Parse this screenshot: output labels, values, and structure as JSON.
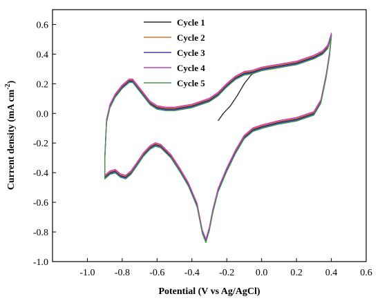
{
  "chart_data": {
    "type": "line",
    "title": "",
    "xlabel": "Potential (V vs Ag/AgCl)",
    "ylabel_main": "Current density (mA cm",
    "ylabel_sup": "-2",
    "ylabel_close": ")",
    "xlim": [
      -1.2,
      0.6
    ],
    "ylim": [
      -1.0,
      0.7
    ],
    "xticks": [
      -1.0,
      -0.8,
      -0.6,
      -0.4,
      -0.2,
      0.0,
      0.2,
      0.4,
      0.6
    ],
    "xtick_labels": [
      "-1.0",
      "-0.8",
      "-0.6",
      "-0.4",
      "-0.2",
      "0.0",
      "0.2",
      "0.4",
      "0.6"
    ],
    "yticks": [
      -1.0,
      -0.8,
      -0.6,
      -0.4,
      -0.2,
      0.0,
      0.2,
      0.4,
      0.6
    ],
    "ytick_labels": [
      "-1.0",
      "-0.8",
      "-0.6",
      "-0.4",
      "-0.2",
      "0.0",
      "0.2",
      "0.4",
      "0.6"
    ],
    "grid": false,
    "legend_position": "top-center",
    "series": [
      {
        "name": "Cycle 1",
        "color": "#2b2b2b",
        "offset": 0.0
      },
      {
        "name": "Cycle 2",
        "color": "#e06a32",
        "offset": 0.006
      },
      {
        "name": "Cycle 3",
        "color": "#3b3bd6",
        "offset": -0.006
      },
      {
        "name": "Cycle 4",
        "color": "#c23bc2",
        "offset": 0.012
      },
      {
        "name": "Cycle 5",
        "color": "#3f9a3f",
        "offset": -0.012
      }
    ],
    "first_cycle_start": [
      [
        -0.25,
        -0.05
      ],
      [
        -0.22,
        0.0
      ],
      [
        -0.18,
        0.05
      ],
      [
        -0.14,
        0.12
      ],
      [
        -0.1,
        0.2
      ],
      [
        -0.06,
        0.26
      ],
      [
        -0.02,
        0.29
      ]
    ],
    "cv_loop": [
      [
        -0.05,
        0.28
      ],
      [
        0.0,
        0.3
      ],
      [
        0.05,
        0.31
      ],
      [
        0.1,
        0.32
      ],
      [
        0.15,
        0.33
      ],
      [
        0.2,
        0.34
      ],
      [
        0.25,
        0.36
      ],
      [
        0.3,
        0.38
      ],
      [
        0.35,
        0.41
      ],
      [
        0.38,
        0.45
      ],
      [
        0.4,
        0.53
      ],
      [
        0.39,
        0.4
      ],
      [
        0.37,
        0.25
      ],
      [
        0.34,
        0.08
      ],
      [
        0.3,
        0.0
      ],
      [
        0.2,
        -0.04
      ],
      [
        0.1,
        -0.06
      ],
      [
        0.0,
        -0.09
      ],
      [
        -0.05,
        -0.11
      ],
      [
        -0.1,
        -0.16
      ],
      [
        -0.15,
        -0.26
      ],
      [
        -0.2,
        -0.38
      ],
      [
        -0.25,
        -0.52
      ],
      [
        -0.28,
        -0.66
      ],
      [
        -0.3,
        -0.78
      ],
      [
        -0.32,
        -0.86
      ],
      [
        -0.34,
        -0.8
      ],
      [
        -0.37,
        -0.62
      ],
      [
        -0.42,
        -0.48
      ],
      [
        -0.47,
        -0.38
      ],
      [
        -0.52,
        -0.29
      ],
      [
        -0.58,
        -0.22
      ],
      [
        -0.61,
        -0.21
      ],
      [
        -0.64,
        -0.23
      ],
      [
        -0.68,
        -0.28
      ],
      [
        -0.72,
        -0.35
      ],
      [
        -0.75,
        -0.4
      ],
      [
        -0.78,
        -0.43
      ],
      [
        -0.81,
        -0.42
      ],
      [
        -0.84,
        -0.39
      ],
      [
        -0.87,
        -0.4
      ],
      [
        -0.9,
        -0.43
      ],
      [
        -0.9,
        -0.3
      ],
      [
        -0.89,
        -0.05
      ],
      [
        -0.87,
        0.05
      ],
      [
        -0.84,
        0.12
      ],
      [
        -0.8,
        0.18
      ],
      [
        -0.76,
        0.22
      ],
      [
        -0.74,
        0.22
      ],
      [
        -0.72,
        0.19
      ],
      [
        -0.68,
        0.13
      ],
      [
        -0.64,
        0.07
      ],
      [
        -0.6,
        0.04
      ],
      [
        -0.55,
        0.03
      ],
      [
        -0.5,
        0.03
      ],
      [
        -0.45,
        0.04
      ],
      [
        -0.4,
        0.05
      ],
      [
        -0.35,
        0.07
      ],
      [
        -0.3,
        0.09
      ],
      [
        -0.25,
        0.13
      ],
      [
        -0.2,
        0.19
      ],
      [
        -0.15,
        0.24
      ],
      [
        -0.1,
        0.27
      ],
      [
        -0.05,
        0.28
      ]
    ]
  }
}
